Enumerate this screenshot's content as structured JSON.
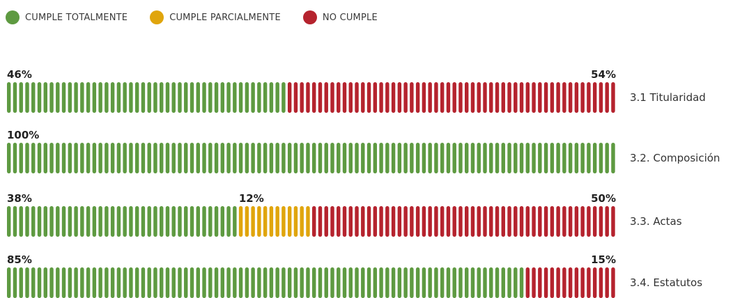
{
  "legend": [
    {
      "label": "CUMPLE TOTALMENTE",
      "color": "#5e9a41"
    },
    {
      "label": "CUMPLE PARCIALMENTE",
      "color": "#e0a50c"
    },
    {
      "label": "NO CUMPLE",
      "color": "#b5232e"
    }
  ],
  "chart_data": {
    "type": "bar",
    "orientation": "horizontal",
    "stacked": true,
    "units_per_bar": 100,
    "series_names": [
      "CUMPLE TOTALMENTE",
      "CUMPLE PARCIALMENTE",
      "NO CUMPLE"
    ],
    "series_colors": [
      "#5e9a41",
      "#e0a50c",
      "#b5232e"
    ],
    "legend_position": "top-left",
    "rows": [
      {
        "label": "3.1 Titularidad",
        "values": [
          46,
          0,
          54
        ],
        "labels": [
          "46%",
          "",
          "54%"
        ]
      },
      {
        "label": "3.2. Composición",
        "values": [
          100,
          0,
          0
        ],
        "labels": [
          "100%",
          "",
          ""
        ]
      },
      {
        "label": "3.3. Actas",
        "values": [
          38,
          12,
          50
        ],
        "labels": [
          "38%",
          "12%",
          "50%"
        ]
      },
      {
        "label": "3.4. Estatutos",
        "values": [
          85,
          0,
          15
        ],
        "labels": [
          "85%",
          "",
          "15%"
        ]
      }
    ]
  }
}
